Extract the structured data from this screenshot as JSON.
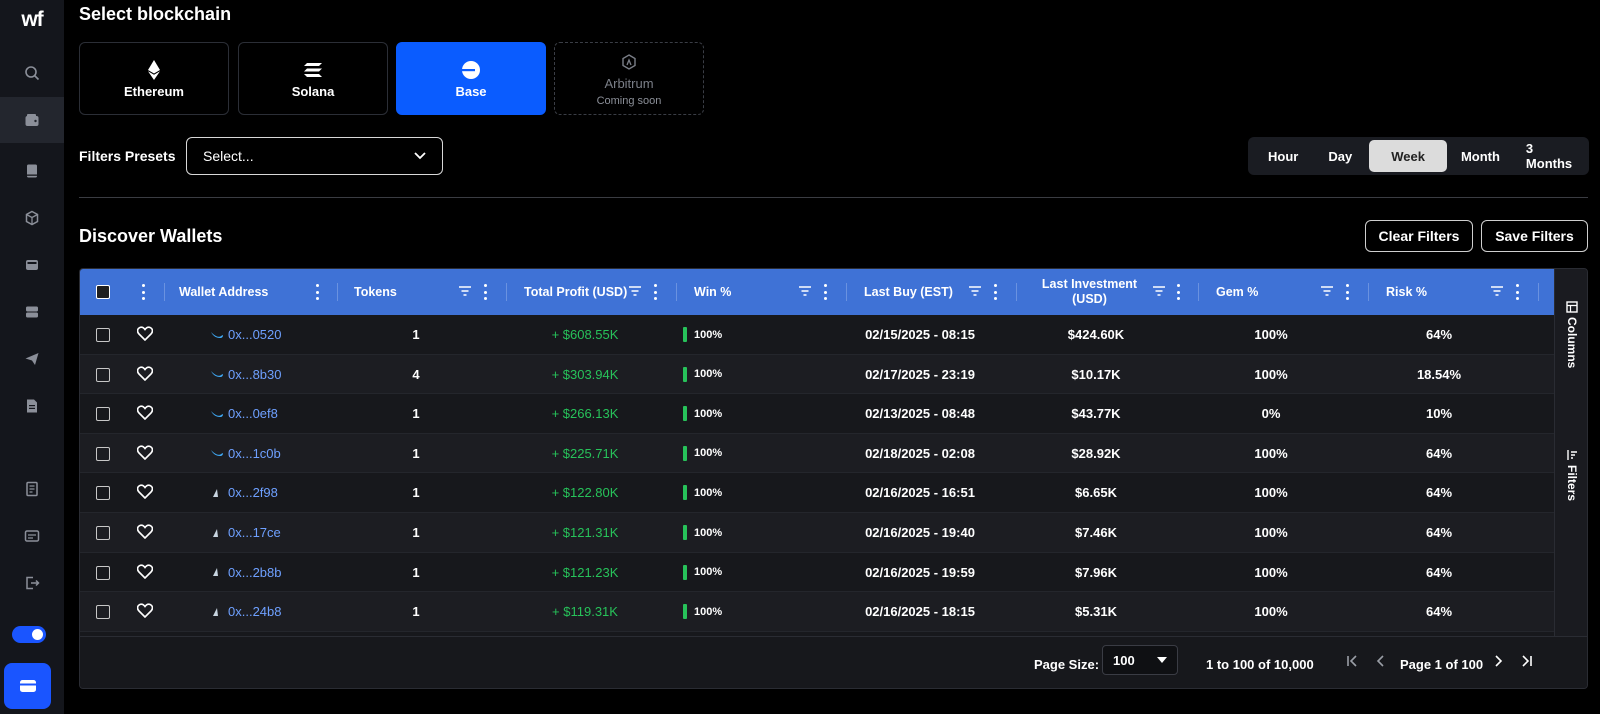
{
  "sidebar": {
    "logo": "wf",
    "icons": [
      "search-icon",
      "wallet-icon",
      "book-icon",
      "cube-icon",
      "inbox-icon",
      "server-icon",
      "send-icon",
      "document-icon",
      "notebook-icon",
      "card-icon",
      "logout-icon"
    ],
    "toggle_on": true
  },
  "header": {
    "select_blockchain": "Select blockchain"
  },
  "chains": [
    {
      "name": "Ethereum",
      "icon": "ethereum-icon",
      "active": false
    },
    {
      "name": "Solana",
      "icon": "solana-icon",
      "active": false
    },
    {
      "name": "Base",
      "icon": "base-icon",
      "active": true
    },
    {
      "name": "Arbitrum",
      "sub": "Coming soon",
      "icon": "arbitrum-icon",
      "disabled": true
    }
  ],
  "filters": {
    "label": "Filters Presets",
    "placeholder": "Select..."
  },
  "periods": [
    "Hour",
    "Day",
    "Week",
    "Month",
    "3 Months"
  ],
  "active_period": "Week",
  "discover": {
    "title": "Discover Wallets",
    "clear_label": "Clear Filters",
    "save_label": "Save Filters"
  },
  "table": {
    "columns": [
      "Wallet Address",
      "Tokens",
      "Total Profit (USD)",
      "Win %",
      "Last Buy (EST)",
      "Last Investment (USD)",
      "Gem %",
      "Risk %"
    ],
    "rows": [
      {
        "addr": "0x...0520",
        "icon": "whale-icon",
        "tokens": "1",
        "profit": "+ $608.55K",
        "win": "100%",
        "last_buy": "02/15/2025 - 08:15",
        "invest": "$424.60K",
        "gem": "100%",
        "risk": "64%"
      },
      {
        "addr": "0x...8b30",
        "icon": "whale-icon",
        "tokens": "4",
        "profit": "+ $303.94K",
        "win": "100%",
        "last_buy": "02/17/2025 - 23:19",
        "invest": "$10.17K",
        "gem": "100%",
        "risk": "18.54%"
      },
      {
        "addr": "0x...0ef8",
        "icon": "whale-icon",
        "tokens": "1",
        "profit": "+ $266.13K",
        "win": "100%",
        "last_buy": "02/13/2025 - 08:48",
        "invest": "$43.77K",
        "gem": "0%",
        "risk": "10%"
      },
      {
        "addr": "0x...1c0b",
        "icon": "whale-icon",
        "tokens": "1",
        "profit": "+ $225.71K",
        "win": "100%",
        "last_buy": "02/18/2025 - 02:08",
        "invest": "$28.92K",
        "gem": "100%",
        "risk": "64%"
      },
      {
        "addr": "0x...2f98",
        "icon": "shark-icon",
        "tokens": "1",
        "profit": "+ $122.80K",
        "win": "100%",
        "last_buy": "02/16/2025 - 16:51",
        "invest": "$6.65K",
        "gem": "100%",
        "risk": "64%"
      },
      {
        "addr": "0x...17ce",
        "icon": "shark-icon",
        "tokens": "1",
        "profit": "+ $121.31K",
        "win": "100%",
        "last_buy": "02/16/2025 - 19:40",
        "invest": "$7.46K",
        "gem": "100%",
        "risk": "64%"
      },
      {
        "addr": "0x...2b8b",
        "icon": "shark-icon",
        "tokens": "1",
        "profit": "+ $121.23K",
        "win": "100%",
        "last_buy": "02/16/2025 - 19:59",
        "invest": "$7.96K",
        "gem": "100%",
        "risk": "64%"
      },
      {
        "addr": "0x...24b8",
        "icon": "shark-icon",
        "tokens": "1",
        "profit": "+ $119.31K",
        "win": "100%",
        "last_buy": "02/16/2025 - 18:15",
        "invest": "$5.31K",
        "gem": "100%",
        "risk": "64%"
      }
    ]
  },
  "side_tabs": {
    "columns": "Columns",
    "filters": "Filters"
  },
  "pagination": {
    "page_size_label": "Page Size:",
    "page_size": "100",
    "range": "1 to 100 of 10,000",
    "page": "Page 1 of 100"
  },
  "colors": {
    "accent": "#0a5cff",
    "header_blue": "#3f72d6",
    "profit_green": "#27c25a",
    "link_blue": "#6ea0ff"
  }
}
